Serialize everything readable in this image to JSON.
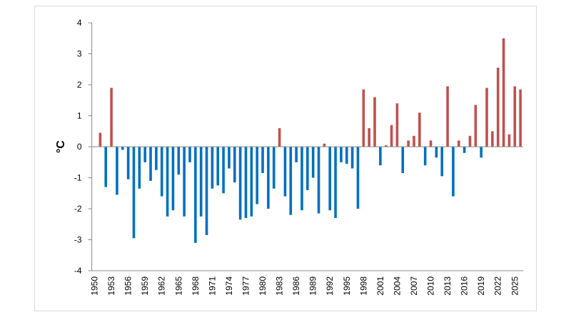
{
  "chart_data": {
    "type": "bar",
    "y_label": "°C",
    "categories": [
      1950,
      null,
      null,
      1953,
      null,
      null,
      1956,
      null,
      null,
      1959,
      null,
      null,
      1962,
      null,
      null,
      1965,
      null,
      null,
      1968,
      null,
      null,
      1971,
      null,
      null,
      1974,
      null,
      null,
      1977,
      null,
      null,
      1980,
      null,
      null,
      1983,
      null,
      null,
      1986,
      null,
      null,
      1989,
      null,
      null,
      1992,
      null,
      null,
      1995,
      null,
      null,
      1998,
      null,
      null,
      2001,
      null,
      null,
      2004,
      null,
      null,
      2007,
      null,
      null,
      2010,
      null,
      null,
      2013,
      null,
      null,
      2016,
      null,
      null,
      2019,
      null,
      null,
      2022,
      null,
      null,
      2025,
      null
    ],
    "values": [
      null,
      0.45,
      -1.3,
      1.9,
      -1.55,
      -0.1,
      -1.05,
      -2.95,
      -1.35,
      -0.5,
      -1.1,
      -0.75,
      -1.6,
      -2.25,
      -2.05,
      -0.9,
      -2.25,
      -0.5,
      -3.1,
      -2.25,
      -2.85,
      -1.35,
      -1.25,
      -1.5,
      -0.7,
      -1.15,
      -2.35,
      -2.3,
      -2.25,
      -1.85,
      -0.85,
      -2.0,
      -1.35,
      0.6,
      -1.6,
      -2.2,
      -0.5,
      -2.05,
      -1.4,
      -1.0,
      -2.15,
      0.1,
      -2.05,
      -2.3,
      -0.5,
      -0.55,
      -0.7,
      -2.0,
      1.85,
      0.6,
      1.6,
      -0.6,
      0.05,
      0.7,
      1.4,
      -0.85,
      0.2,
      0.35,
      1.1,
      -0.6,
      0.2,
      -0.35,
      -0.95,
      1.95,
      -1.6,
      0.2,
      -0.2,
      0.35,
      1.35,
      -0.35,
      1.9,
      0.5,
      2.55,
      3.5,
      0.4,
      1.95,
      1.85
    ],
    "colors": {
      "positive": "#c0504d",
      "negative": "#0070c0"
    },
    "ylim": [
      -4,
      4
    ],
    "yticks": [
      -4,
      -3,
      -2,
      -1,
      0,
      1,
      2,
      3,
      4
    ],
    "grid": false
  }
}
